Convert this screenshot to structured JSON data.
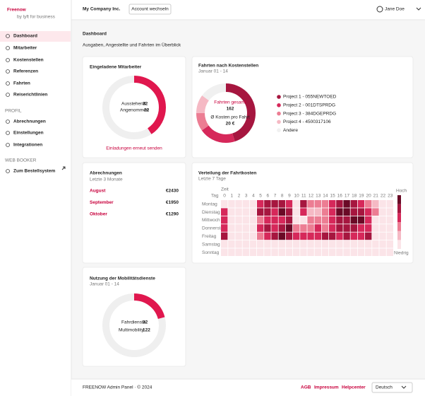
{
  "sidebar": {
    "logo": "Freenow",
    "logo_sub": "by lyft for business",
    "nav": [
      "Dashboard",
      "Mitarbeiter",
      "Kostenstellen",
      "Referenzen",
      "Fahrten",
      "Reiserichtlinien"
    ],
    "profile_heading": "PROFIL",
    "profile_nav": [
      "Abrechnungen",
      "Einstellungen",
      "Integrationen"
    ],
    "web_booker_heading": "WEB BOOKER",
    "web_booker_link": "Zum Bestellsystem"
  },
  "header": {
    "company": "My Company Inc.",
    "switch_button": "Account wechseln",
    "user": "Jane Doe"
  },
  "page": {
    "title": "Dashboard",
    "subtitle": "Ausgaben, Angestellte und Fahrten im Überblick"
  },
  "invited": {
    "title": "Eingeladene Mitarbeiter",
    "pending_label": "Ausstehend",
    "pending": 32,
    "accepted_label": "Angenommen",
    "accepted": 22,
    "resend_link": "Einladungen erneut senden"
  },
  "rides_by_cost_center": {
    "title": "Fahrten nach Kostenstellen",
    "subtitle": "Januar 01 - 14",
    "total_label": "Fahrten gesamt",
    "total": 162,
    "avg_label": "Ø Kosten pro Fahrt",
    "avg": "20 €",
    "segments": [
      {
        "name": "Project 1 - 055NEWTOED",
        "color": "#a6163f",
        "value": 45
      },
      {
        "name": "Project 2 - 001DTSPRDG",
        "color": "#d6285a",
        "value": 20
      },
      {
        "name": "Project 3 - 384DGEPRDG",
        "color": "#ec7d93",
        "value": 10
      },
      {
        "name": "Project 4 - 4500317106",
        "color": "#f5b9c4",
        "value": 10
      },
      {
        "name": "Andere",
        "color": "#f0f0f0",
        "value": 15
      }
    ]
  },
  "billing": {
    "title": "Abrechnungen",
    "subtitle": "Letzte 3 Monate",
    "rows": [
      {
        "month": "August",
        "amount": "€2430"
      },
      {
        "month": "September",
        "amount": "€1950"
      },
      {
        "month": "Oktober",
        "amount": "€1290"
      }
    ]
  },
  "cost_heatmap": {
    "title": "Verteilung der Fahrtkosten",
    "subtitle": "Letzte 7 Tage",
    "x_label": "Zeit",
    "y_label": "Tag",
    "high_label": "Hoch",
    "low_label": "Niedrig",
    "hours": [
      0,
      1,
      2,
      3,
      4,
      5,
      6,
      7,
      8,
      9,
      10,
      11,
      12,
      13,
      14,
      15,
      16,
      17,
      18,
      19,
      20,
      21,
      22,
      23
    ],
    "days": [
      "Montag",
      "Dienstag",
      "Mittwoch",
      "Donnerstag",
      "Freitag",
      "Samstag",
      "Sonntag"
    ],
    "level_colors": [
      "#fbe4e8",
      "#f5b9c4",
      "#ec7d93",
      "#d6285a",
      "#a6163f",
      "#6a0a26"
    ],
    "values": [
      [
        0,
        0,
        0,
        0,
        0,
        3,
        4,
        4,
        4,
        3,
        0,
        4,
        2,
        2,
        2,
        3,
        4,
        5,
        4,
        3,
        2,
        1,
        0,
        0
      ],
      [
        3,
        0,
        0,
        0,
        0,
        4,
        4,
        3,
        5,
        4,
        0,
        3,
        1,
        1,
        2,
        3,
        5,
        5,
        4,
        4,
        3,
        2,
        0,
        0
      ],
      [
        3,
        0,
        0,
        0,
        0,
        2,
        3,
        3,
        3,
        4,
        0,
        0,
        2,
        2,
        2,
        3,
        4,
        4,
        5,
        5,
        3,
        0,
        0,
        0
      ],
      [
        3,
        0,
        0,
        0,
        0,
        3,
        4,
        3,
        4,
        5,
        2,
        2,
        2,
        3,
        2,
        3,
        4,
        4,
        4,
        3,
        3,
        0,
        0,
        0
      ],
      [
        4,
        0,
        0,
        0,
        0,
        2,
        3,
        4,
        5,
        4,
        3,
        3,
        3,
        3,
        4,
        4,
        3,
        4,
        3,
        3,
        4,
        0,
        0,
        0
      ],
      [
        0,
        0,
        0,
        0,
        0,
        0,
        0,
        0,
        0,
        0,
        0,
        0,
        0,
        0,
        0,
        0,
        0,
        0,
        0,
        0,
        0,
        0,
        0,
        0
      ],
      [
        0,
        0,
        0,
        0,
        0,
        0,
        0,
        0,
        0,
        0,
        0,
        0,
        0,
        0,
        0,
        0,
        0,
        0,
        0,
        0,
        0,
        0,
        0,
        0
      ]
    ]
  },
  "mobility": {
    "title": "Nutzung der Mobilitätsdienste",
    "subtitle": "Januar 01 - 14",
    "ride_label": "Fahrdienste",
    "rides": 32,
    "multi_label": "Multimobility",
    "multi": 122
  },
  "footer": {
    "copyright": "FREENOW Admin Panel · © 2024",
    "links": [
      "AGB",
      "Impressum",
      "Helpcenter"
    ],
    "language": "Deutsch"
  }
}
